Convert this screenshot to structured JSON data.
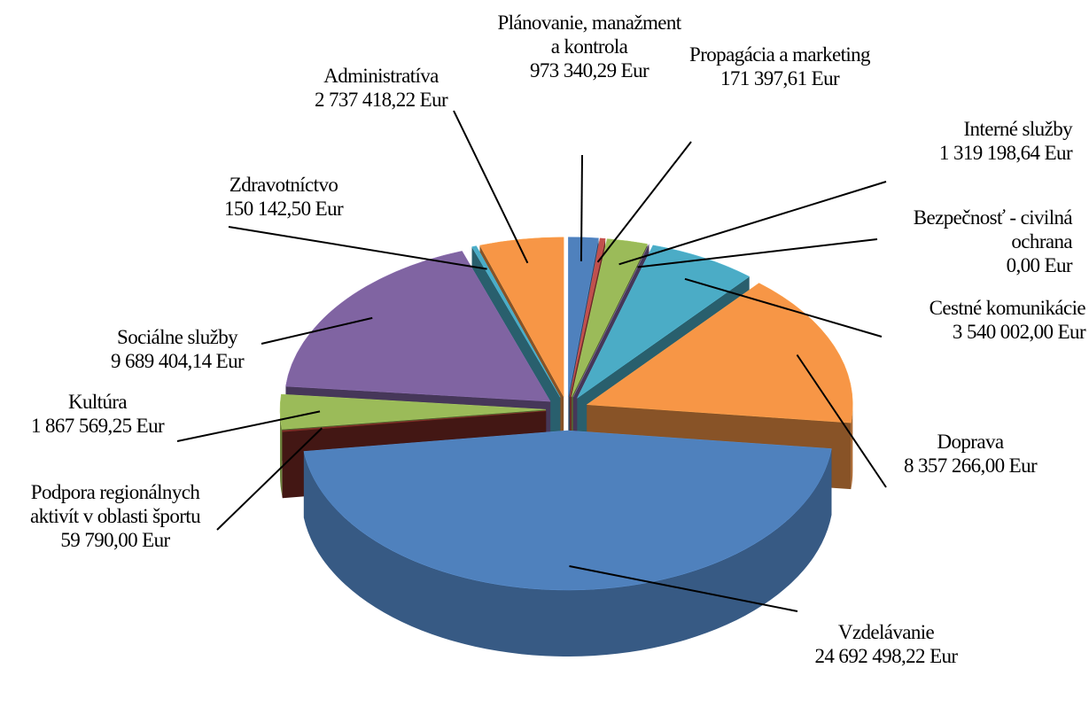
{
  "chart_data": {
    "type": "pie3d",
    "categories": [
      "Plánovanie, manažment a kontrola",
      "Propagácia a marketing",
      "Interné služby",
      "Bezpečnosť - civilná ochrana",
      "Cestné komunikácie",
      "Doprava",
      "Vzdelávanie",
      "Podpora regionálnych aktivít v oblasti športu",
      "Kultúra",
      "Sociálne služby",
      "Zdravotníctvo",
      "Administratíva"
    ],
    "values": [
      973340.29,
      171397.61,
      1319198.64,
      0.0,
      3540002.0,
      8357266.0,
      24692498.22,
      59790.0,
      1867569.25,
      9689404.14,
      150142.5,
      2737418.22
    ],
    "value_labels": [
      "973 340,29 Eur",
      "171 397,61 Eur",
      "1 319 198,64 Eur",
      "0,00 Eur",
      "3 540 002,00 Eur",
      "8 357 266,00 Eur",
      "24 692 498,22 Eur",
      "59 790,00 Eur",
      "1 867 569,25 Eur",
      "9 689 404,14 Eur",
      "150 142,50 Eur",
      "2 737 418,22 Eur"
    ],
    "colors": [
      "#4f81bd",
      "#c0504d",
      "#9bbb59",
      "#8064a2",
      "#4bacc6",
      "#f79646",
      "#4f81bd",
      "#7a2a24",
      "#9bbb59",
      "#8064a2",
      "#4bacc6",
      "#f79646"
    ]
  }
}
